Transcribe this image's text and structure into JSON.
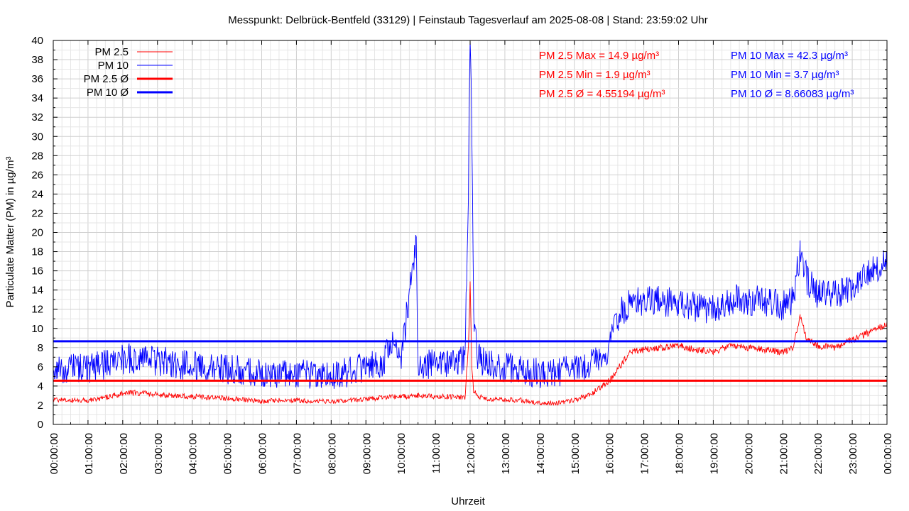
{
  "chart_data": {
    "type": "line",
    "title": "Messpunkt: Delbrück-Bentfeld (33129) | Feinstaub Tagesverlauf am 2025-08-08 | Stand: 23:59:02 Uhr",
    "xlabel": "Uhrzeit",
    "ylabel": "Particulate Matter (PM) in µg/m³",
    "ylim": [
      0,
      40
    ],
    "yticks": [
      "0",
      "2",
      "4",
      "6",
      "8",
      "10",
      "12",
      "14",
      "16",
      "18",
      "20",
      "22",
      "24",
      "26",
      "28",
      "30",
      "32",
      "34",
      "36",
      "38",
      "40"
    ],
    "xticks": [
      "00:00:00",
      "01:00:00",
      "02:00:00",
      "03:00:00",
      "04:00:00",
      "05:00:00",
      "06:00:00",
      "07:00:00",
      "08:00:00",
      "09:00:00",
      "10:00:00",
      "11:00:00",
      "12:00:00",
      "13:00:00",
      "14:00:00",
      "15:00:00",
      "16:00:00",
      "17:00:00",
      "18:00:00",
      "19:00:00",
      "20:00:00",
      "21:00:00",
      "22:00:00",
      "23:00:00",
      "00:00:00"
    ],
    "xlim_hours": [
      0,
      24
    ],
    "grid": true,
    "legend_position": "top-left",
    "legend": [
      "PM 2.5",
      "PM 10",
      "PM 2.5 Ø",
      "PM 10 Ø"
    ],
    "colors": {
      "pm25": "#ff0000",
      "pm10": "#0000ff"
    },
    "series": [
      {
        "name": "PM 2.5",
        "x_hours": [
          0,
          0.5,
          1,
          1.5,
          2,
          2.5,
          3,
          3.5,
          4,
          4.5,
          5,
          5.5,
          6,
          6.5,
          7,
          7.5,
          8,
          8.5,
          9,
          9.5,
          10,
          10.5,
          11,
          11.5,
          11.85,
          11.95,
          12.0,
          12.05,
          12.1,
          12.2,
          12.5,
          13,
          13.5,
          14,
          14.5,
          15,
          15.5,
          16,
          16.3,
          16.6,
          17,
          17.5,
          18,
          18.5,
          19,
          19.5,
          20,
          20.5,
          21,
          21.3,
          21.5,
          21.7,
          22,
          22.5,
          23,
          23.5,
          24
        ],
        "values": [
          2.6,
          2.5,
          2.5,
          2.8,
          3.2,
          3.3,
          3.1,
          3.0,
          2.9,
          2.8,
          2.7,
          2.6,
          2.4,
          2.5,
          2.5,
          2.4,
          2.4,
          2.5,
          2.6,
          2.8,
          2.9,
          3.0,
          2.9,
          2.9,
          2.8,
          8.0,
          14.9,
          6.0,
          3.5,
          3.0,
          2.6,
          2.6,
          2.5,
          2.2,
          2.2,
          2.5,
          3.2,
          4.5,
          6.0,
          7.5,
          7.8,
          8.0,
          8.2,
          7.8,
          7.6,
          8.2,
          8.0,
          7.8,
          7.5,
          8.0,
          11.2,
          8.8,
          8.2,
          8.0,
          8.8,
          9.6,
          10.5
        ]
      },
      {
        "name": "PM 10",
        "x_hours": [
          0,
          0.5,
          1,
          1.5,
          2,
          2.5,
          3,
          3.5,
          4,
          4.5,
          5,
          5.5,
          6,
          6.5,
          7,
          7.5,
          8,
          8.5,
          9,
          9.5,
          9.7,
          10,
          10.45,
          10.5,
          11,
          11.5,
          11.85,
          11.95,
          12.0,
          12.05,
          12.1,
          12.2,
          12.5,
          13,
          13.5,
          14,
          14.5,
          15,
          15.5,
          16,
          16.3,
          16.6,
          17,
          17.5,
          18,
          18.5,
          19,
          19.5,
          20,
          20.5,
          21,
          21.3,
          21.5,
          21.7,
          22,
          22.5,
          23,
          23.5,
          24
        ],
        "values": [
          6.0,
          5.8,
          5.9,
          6.3,
          6.8,
          7.0,
          6.6,
          6.4,
          6.1,
          5.8,
          5.7,
          5.6,
          5.3,
          5.2,
          5.3,
          5.1,
          5.0,
          5.4,
          6.0,
          6.3,
          9.0,
          6.5,
          19.2,
          6.4,
          6.2,
          6.3,
          7.0,
          24.0,
          42.3,
          30.0,
          12.0,
          7.0,
          6.2,
          6.0,
          5.6,
          5.3,
          5.4,
          5.9,
          6.3,
          8.0,
          11.5,
          12.5,
          13.0,
          12.8,
          12.6,
          12.2,
          12.0,
          13.0,
          13.0,
          12.8,
          12.3,
          13.0,
          18.0,
          15.0,
          13.5,
          13.6,
          14.0,
          16.0,
          17.0
        ]
      },
      {
        "name": "PM 2.5 Ø",
        "constant": 4.55194
      },
      {
        "name": "PM 10 Ø",
        "constant": 8.66083
      }
    ],
    "stats": {
      "pm25": [
        "PM 2.5 Max = 14.9 µg/m³",
        "PM 2.5 Min = 1.9 µg/m³",
        "PM 2.5 Ø = 4.55194 µg/m³"
      ],
      "pm10": [
        "PM 10 Max = 42.3 µg/m³",
        "PM 10 Min = 3.7 µg/m³",
        "PM 10 Ø = 8.66083 µg/m³"
      ]
    }
  }
}
